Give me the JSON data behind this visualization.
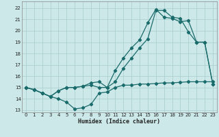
{
  "xlabel": "Humidex (Indice chaleur)",
  "bg_color": "#cde8e8",
  "grid_color": "#a8cccc",
  "line_color": "#1a6b6b",
  "xlim": [
    -0.5,
    23.5
  ],
  "ylim": [
    12.8,
    22.6
  ],
  "xticks": [
    0,
    1,
    2,
    3,
    4,
    5,
    6,
    7,
    8,
    9,
    10,
    11,
    12,
    13,
    14,
    15,
    16,
    17,
    18,
    19,
    20,
    21,
    22,
    23
  ],
  "yticks": [
    13,
    14,
    15,
    16,
    17,
    18,
    19,
    20,
    21,
    22
  ],
  "line1_x": [
    0,
    1,
    2,
    3,
    4,
    5,
    6,
    7,
    8,
    9,
    10,
    11,
    12,
    13,
    14,
    15,
    16,
    17,
    18,
    19,
    20,
    21,
    22,
    23
  ],
  "line1_y": [
    15.0,
    14.8,
    14.5,
    14.2,
    14.0,
    13.7,
    13.1,
    13.2,
    13.5,
    14.5,
    14.6,
    15.0,
    15.2,
    15.2,
    15.3,
    15.3,
    15.35,
    15.4,
    15.4,
    15.45,
    15.5,
    15.5,
    15.5,
    15.5
  ],
  "line2_x": [
    0,
    1,
    2,
    3,
    4,
    5,
    6,
    7,
    8,
    9,
    10,
    11,
    12,
    13,
    14,
    15,
    16,
    17,
    18,
    19,
    20,
    21,
    22,
    23
  ],
  "line2_y": [
    15.0,
    14.8,
    14.5,
    14.2,
    14.7,
    15.0,
    15.0,
    15.1,
    15.2,
    15.0,
    15.0,
    16.5,
    17.6,
    18.5,
    19.2,
    20.7,
    21.9,
    21.2,
    21.1,
    20.8,
    20.9,
    19.0,
    19.0,
    15.3
  ],
  "line3_x": [
    0,
    1,
    2,
    3,
    4,
    5,
    6,
    7,
    8,
    9,
    10,
    11,
    12,
    13,
    14,
    15,
    16,
    17,
    18,
    19,
    20,
    21,
    22,
    23
  ],
  "line3_y": [
    15.0,
    14.8,
    14.5,
    14.2,
    14.7,
    15.0,
    15.0,
    15.1,
    15.4,
    15.5,
    15.0,
    15.5,
    16.7,
    17.6,
    18.5,
    19.3,
    21.8,
    21.8,
    21.2,
    21.1,
    19.9,
    19.0,
    19.0,
    15.3
  ]
}
